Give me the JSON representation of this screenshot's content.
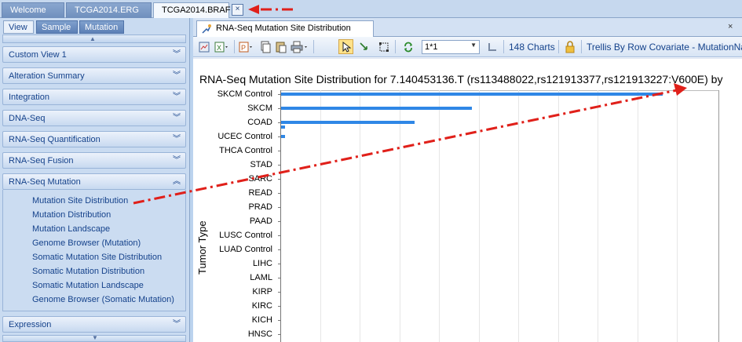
{
  "doc_tabs": [
    {
      "label": "Welcome",
      "active": false
    },
    {
      "label": "TCGA2014.ERG",
      "active": false
    },
    {
      "label": "TCGA2014.BRAF",
      "active": true
    }
  ],
  "doc_tab_close": "×",
  "side_tabs": [
    {
      "label": "View",
      "active": true
    },
    {
      "label": "Sample",
      "active": false
    },
    {
      "label": "Mutation",
      "active": false
    }
  ],
  "panels": [
    {
      "label": "Custom View 1"
    },
    {
      "label": "Alteration Summary"
    },
    {
      "label": "Integration"
    },
    {
      "label": "DNA-Seq"
    },
    {
      "label": "RNA-Seq Quantification"
    },
    {
      "label": "RNA-Seq Fusion"
    },
    {
      "label": "RNA-Seq Mutation",
      "expanded": true
    },
    {
      "label": "Expression"
    }
  ],
  "rnaseq_mutation_items": [
    "Mutation Site Distribution",
    "Mutation Distribution",
    "Mutation Landscape",
    "Genome Browser (Mutation)",
    "Somatic Mutation Site Distribution",
    "Somatic Mutation Distribution",
    "Somatic Mutation Landscape",
    "Genome Browser (Somatic Mutation)"
  ],
  "chart_tab": {
    "label": "RNA-Seq Mutation Site Distribution",
    "close": "×"
  },
  "toolbar": {
    "layout_value": "1*1",
    "charts_count": "148 Charts",
    "trellis": "Trellis By Row Covariate - MutationNa"
  },
  "colors": {
    "bar": "#2f87e6",
    "arrow": "#e0201a"
  },
  "chart_data": {
    "type": "bar",
    "orientation": "horizontal",
    "title": "RNA-Seq Mutation Site Distribution for 7.140453136.T (rs113488022,rs121913377,rs121913227:V600E) by",
    "ylabel": "Tumor Type",
    "xlabel": "",
    "grid": true,
    "categories": [
      "SKCM Control",
      "SKCM",
      "COAD",
      "UCEC Control",
      "THCA Control",
      "STAD",
      "SARC",
      "READ",
      "PRAD",
      "PAAD",
      "LUSC Control",
      "LUAD Control",
      "LIHC",
      "LAML",
      "KIRP",
      "KIRC",
      "KICH",
      "HNSC"
    ],
    "values": [
      1.0,
      0.5,
      0.35,
      0.01,
      0,
      0,
      0,
      0,
      0,
      0,
      0,
      0,
      0,
      0,
      0,
      0,
      0,
      0
    ],
    "xlim": [
      0,
      1.15
    ],
    "extra_bar": {
      "category_index": 2,
      "value": 0.01
    }
  }
}
